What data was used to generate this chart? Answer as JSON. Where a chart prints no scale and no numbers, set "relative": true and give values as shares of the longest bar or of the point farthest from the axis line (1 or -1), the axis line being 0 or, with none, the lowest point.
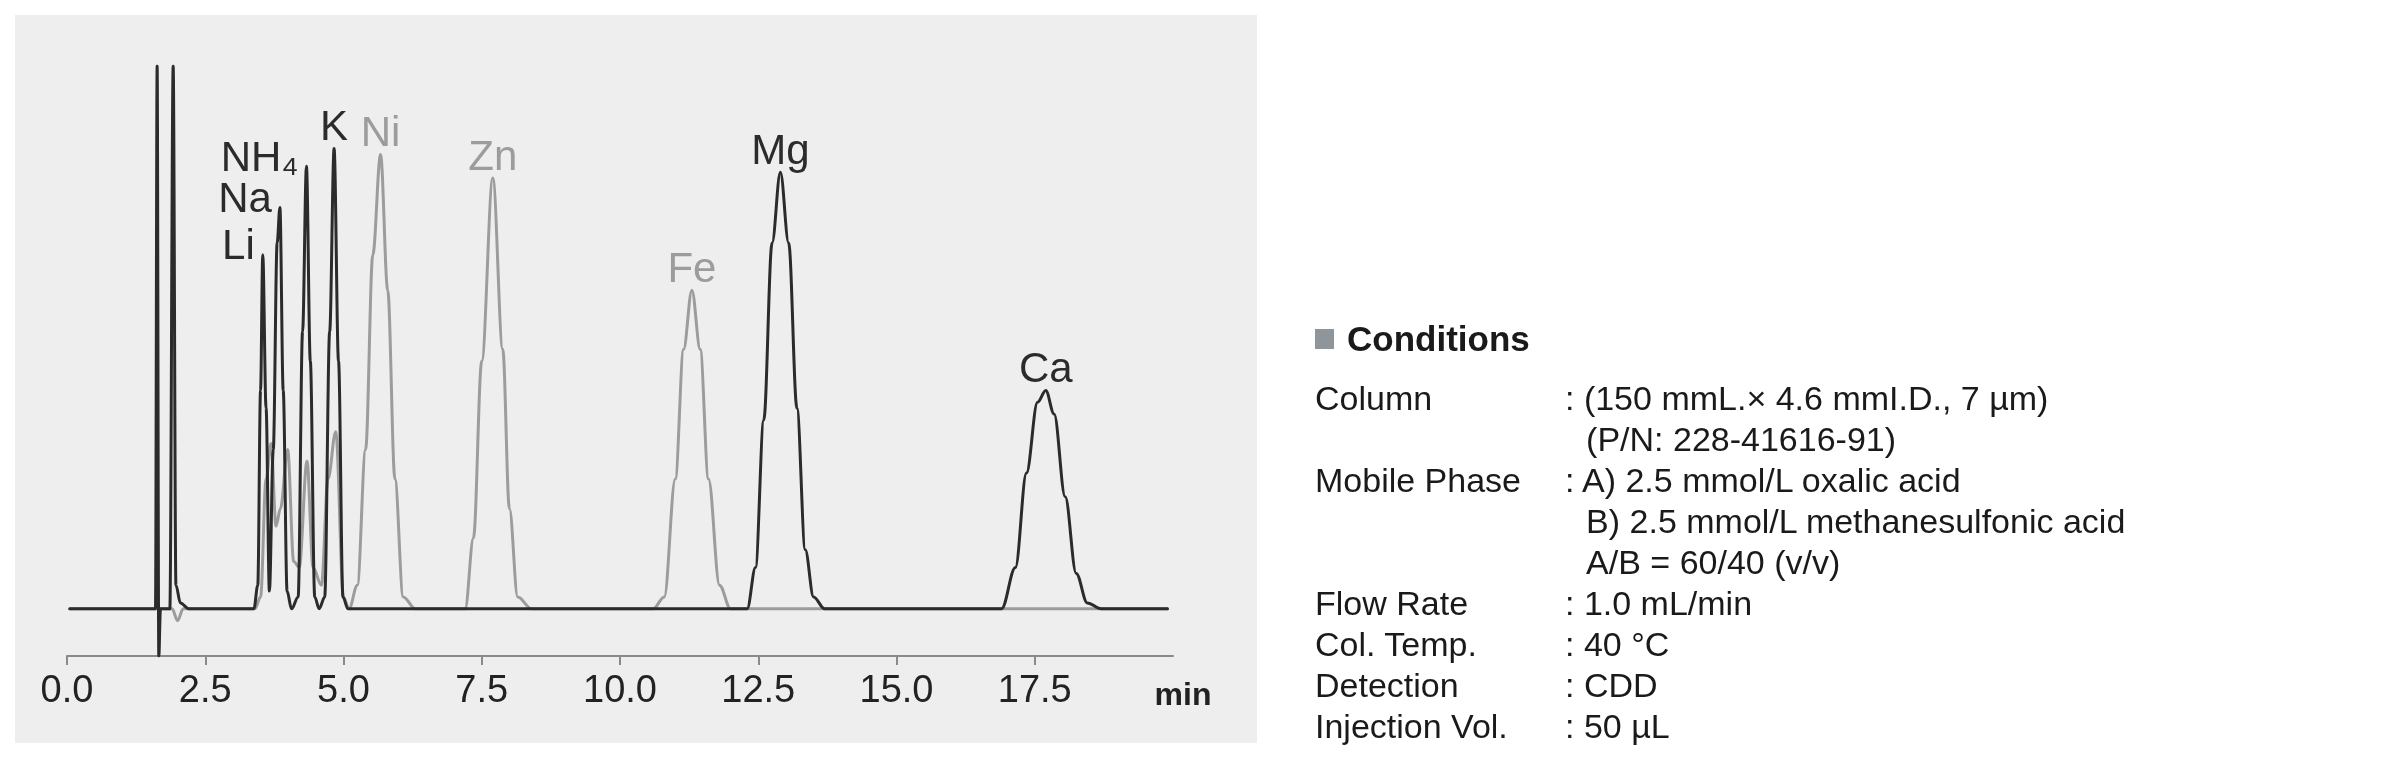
{
  "chart_data": [
    {
      "type": "line",
      "relative": true,
      "xlabel": "min",
      "xlim": [
        0,
        20
      ],
      "xticks": [
        {
          "value": 0,
          "label": "0.0"
        },
        2.5,
        {
          "value": 5,
          "label": "5.0"
        },
        7.5,
        {
          "value": 10,
          "label": "10.0"
        },
        12.5,
        {
          "value": 15,
          "label": "15.0"
        },
        17.5
      ],
      "marker": "none",
      "series": [
        {
          "color": "#9c9c9c",
          "x": [
            0.05,
            1.5,
            1.9,
            2.0,
            2.1,
            2.5,
            3.4,
            3.5,
            3.6,
            3.69,
            3.78,
            3.86,
            3.99,
            4.1,
            4.2,
            4.34,
            4.45,
            4.6,
            4.72,
            4.86,
            5.0,
            5.1,
            5.25,
            5.4,
            5.53,
            5.67,
            5.8,
            5.93,
            6.08,
            6.3,
            7.2,
            7.35,
            7.5,
            7.7,
            7.88,
            8.0,
            8.15,
            8.4,
            10.6,
            10.8,
            11.0,
            11.15,
            11.3,
            11.45,
            11.6,
            11.8,
            12.0,
            12.3,
            15.0,
            19.9
          ],
          "values": [
            0.08,
            0.08,
            0.08,
            0.06,
            0.08,
            0.08,
            0.08,
            0.1,
            0.3,
            0.36,
            0.22,
            0.25,
            0.35,
            0.16,
            0.15,
            0.33,
            0.15,
            0.12,
            0.3,
            0.38,
            0.1,
            0.08,
            0.12,
            0.35,
            0.68,
            0.85,
            0.62,
            0.3,
            0.1,
            0.08,
            0.08,
            0.2,
            0.5,
            0.81,
            0.52,
            0.25,
            0.1,
            0.08,
            0.08,
            0.1,
            0.3,
            0.52,
            0.62,
            0.52,
            0.3,
            0.12,
            0.08,
            0.08,
            0.08,
            0.08
          ]
        },
        {
          "color": "#2b2b2b",
          "x": [
            0.05,
            0.8,
            1.5,
            1.6,
            1.63,
            1.66,
            1.69,
            1.86,
            1.92,
            1.97,
            2.05,
            2.2,
            3.38,
            3.45,
            3.5,
            3.54,
            3.6,
            3.66,
            3.73,
            3.8,
            3.85,
            3.91,
            3.98,
            4.06,
            4.18,
            4.26,
            4.33,
            4.4,
            4.48,
            4.56,
            4.66,
            4.75,
            4.83,
            4.91,
            4.99,
            5.08,
            8.0,
            12.3,
            12.45,
            12.6,
            12.75,
            12.9,
            13.05,
            13.2,
            13.35,
            13.5,
            13.7,
            16.9,
            17.15,
            17.35,
            17.55,
            17.7,
            17.85,
            18.05,
            18.25,
            18.45,
            18.7,
            19.9
          ],
          "values": [
            0.08,
            0.08,
            0.08,
            0.08,
            1.0,
            0.0,
            0.08,
            0.08,
            1.0,
            0.12,
            0.09,
            0.08,
            0.08,
            0.12,
            0.45,
            0.68,
            0.42,
            0.11,
            0.35,
            0.7,
            0.76,
            0.45,
            0.11,
            0.08,
            0.1,
            0.55,
            0.83,
            0.5,
            0.1,
            0.08,
            0.1,
            0.55,
            0.86,
            0.5,
            0.1,
            0.08,
            0.08,
            0.08,
            0.15,
            0.4,
            0.7,
            0.82,
            0.7,
            0.42,
            0.18,
            0.1,
            0.08,
            0.08,
            0.15,
            0.31,
            0.43,
            0.45,
            0.41,
            0.27,
            0.14,
            0.09,
            0.08,
            0.08
          ]
        }
      ],
      "annotations": [
        {
          "text": "Li",
          "x": 3.54,
          "y": 0.68
        },
        {
          "text": "Na",
          "x": 3.85,
          "y": 0.76
        },
        {
          "text": "NH₄",
          "x": 4.33,
          "y": 0.83
        },
        {
          "text": "K",
          "x": 4.83,
          "y": 0.86
        },
        {
          "text": "Ni",
          "x": 5.67,
          "y": 0.85
        },
        {
          "text": "Zn",
          "x": 7.7,
          "y": 0.81
        },
        {
          "text": "Fe",
          "x": 11.3,
          "y": 0.62
        },
        {
          "text": "Mg",
          "x": 12.9,
          "y": 0.82
        },
        {
          "text": "Ca",
          "x": 17.7,
          "y": 0.45
        }
      ]
    },
    {
      "type": "other",
      "title": "Conditions",
      "annotations": [
        "Column",
        ": (150 mmL.× 4.6 mmI.D., 7 µm)\n(P/N: 228-41616-91)",
        "Mobile Phase",
        ": A) 2.5 mmol/L oxalic acid\nB) 2.5 mmol/L methanesulfonic acid\nA/B = 60/40 (v/v)",
        "Flow Rate",
        ": 1.0 mL/min",
        "Col. Temp.",
        ": 40 °C",
        "Detection",
        ": CDD",
        "Injection Vol.",
        ": 50 µL"
      ]
    }
  ]
}
